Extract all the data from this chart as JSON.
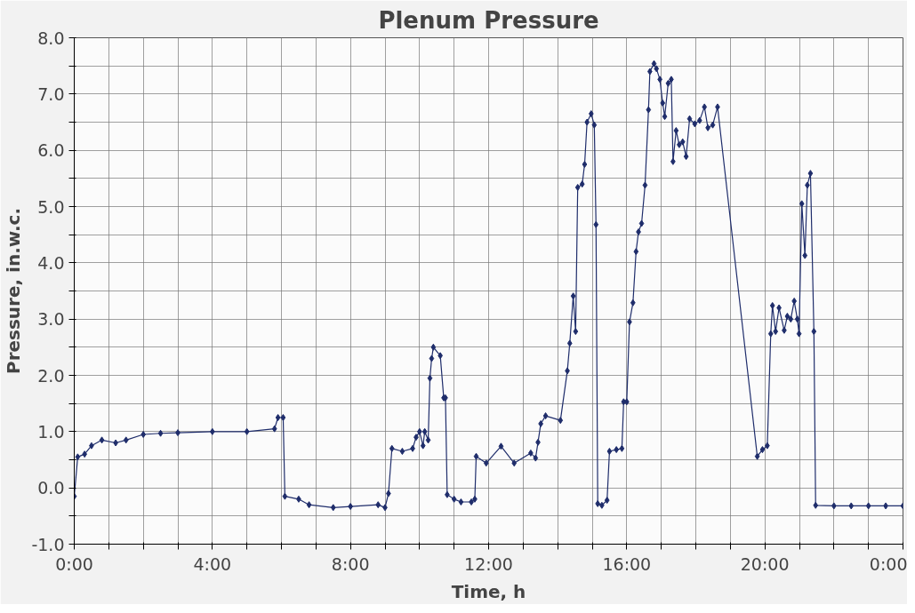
{
  "chart_data": {
    "type": "line",
    "title": "Plenum Pressure",
    "xlabel": "Time, h",
    "ylabel": "Pressure, in.w.c.",
    "xlim": [
      0,
      24
    ],
    "ylim": [
      -1,
      8
    ],
    "xticks": [
      {
        "value": 0,
        "label": "0:00"
      },
      {
        "value": 1,
        "label": null
      },
      {
        "value": 2,
        "label": null
      },
      {
        "value": 3,
        "label": null
      },
      {
        "value": 4,
        "label": "4:00"
      },
      {
        "value": 5,
        "label": null
      },
      {
        "value": 6,
        "label": null
      },
      {
        "value": 7,
        "label": null
      },
      {
        "value": 8,
        "label": "8:00"
      },
      {
        "value": 9,
        "label": null
      },
      {
        "value": 10,
        "label": null
      },
      {
        "value": 11,
        "label": null
      },
      {
        "value": 12,
        "label": "12:00"
      },
      {
        "value": 13,
        "label": null
      },
      {
        "value": 14,
        "label": null
      },
      {
        "value": 15,
        "label": null
      },
      {
        "value": 16,
        "label": "16:00"
      },
      {
        "value": 17,
        "label": null
      },
      {
        "value": 18,
        "label": null
      },
      {
        "value": 19,
        "label": null
      },
      {
        "value": 20,
        "label": "20:00"
      },
      {
        "value": 21,
        "label": null
      },
      {
        "value": 22,
        "label": null
      },
      {
        "value": 23,
        "label": null
      },
      {
        "value": 24,
        "label": "0:00"
      }
    ],
    "yticks": [
      {
        "value": -1,
        "label": "-1.0"
      },
      {
        "value": -0.5,
        "label": null
      },
      {
        "value": 0,
        "label": "0.0"
      },
      {
        "value": 0.5,
        "label": null
      },
      {
        "value": 1,
        "label": "1.0"
      },
      {
        "value": 1.5,
        "label": null
      },
      {
        "value": 2,
        "label": "2.0"
      },
      {
        "value": 2.5,
        "label": null
      },
      {
        "value": 3,
        "label": "3.0"
      },
      {
        "value": 3.5,
        "label": null
      },
      {
        "value": 4,
        "label": "4.0"
      },
      {
        "value": 4.5,
        "label": null
      },
      {
        "value": 5,
        "label": "5.0"
      },
      {
        "value": 5.5,
        "label": null
      },
      {
        "value": 6,
        "label": "6.0"
      },
      {
        "value": 6.5,
        "label": null
      },
      {
        "value": 7,
        "label": "7.0"
      },
      {
        "value": 7.5,
        "label": null
      },
      {
        "value": 8,
        "label": "8.0"
      }
    ],
    "grid": true,
    "marker": "diamond",
    "line_style": "solid",
    "series": [
      {
        "color": "#1f2d6b",
        "x": [
          0.0,
          0.1,
          0.3,
          0.5,
          0.8,
          1.2,
          1.5,
          2.0,
          2.5,
          3.0,
          4.0,
          5.0,
          5.8,
          5.9,
          6.05,
          6.1,
          6.5,
          6.8,
          7.5,
          8.0,
          8.8,
          9.0,
          9.1,
          9.2,
          9.5,
          9.8,
          9.9,
          10.0,
          10.1,
          10.15,
          10.25,
          10.3,
          10.35,
          10.4,
          10.6,
          10.7,
          10.75,
          10.8,
          11.0,
          11.2,
          11.5,
          11.6,
          11.64,
          11.93,
          12.36,
          12.74,
          13.22,
          13.36,
          13.43,
          13.51,
          13.65,
          14.08,
          14.28,
          14.35,
          14.45,
          14.52,
          14.58,
          14.71,
          14.78,
          14.85,
          14.97,
          15.06,
          15.11,
          15.16,
          15.28,
          15.43,
          15.5,
          15.7,
          15.86,
          15.91,
          16.0,
          16.08,
          16.18,
          16.27,
          16.34,
          16.43,
          16.53,
          16.63,
          16.67,
          16.79,
          16.86,
          16.96,
          17.04,
          17.1,
          17.2,
          17.29,
          17.34,
          17.43,
          17.52,
          17.62,
          17.72,
          17.82,
          17.97,
          18.11,
          18.25,
          18.35,
          18.49,
          18.63,
          19.78,
          19.93,
          20.07,
          20.17,
          20.22,
          20.31,
          20.41,
          20.56,
          20.65,
          20.75,
          20.85,
          20.94,
          20.99,
          21.07,
          21.16,
          21.23,
          21.32,
          21.42,
          21.47,
          22.0,
          22.5,
          23.0,
          23.5,
          24.0
        ],
        "values": [
          -0.15,
          0.55,
          0.6,
          0.75,
          0.85,
          0.8,
          0.85,
          0.95,
          0.97,
          0.98,
          1.0,
          1.0,
          1.05,
          1.25,
          1.25,
          -0.15,
          -0.2,
          -0.3,
          -0.35,
          -0.33,
          -0.3,
          -0.35,
          -0.1,
          0.7,
          0.65,
          0.7,
          0.9,
          1.0,
          0.75,
          1.0,
          0.85,
          1.95,
          2.3,
          2.5,
          2.35,
          1.6,
          1.6,
          -0.12,
          -0.2,
          -0.25,
          -0.25,
          -0.2,
          0.56,
          0.44,
          0.74,
          0.44,
          0.62,
          0.53,
          0.81,
          1.14,
          1.28,
          1.2,
          2.08,
          2.57,
          3.41,
          2.78,
          5.34,
          5.4,
          5.75,
          6.5,
          6.65,
          6.45,
          4.68,
          -0.28,
          -0.31,
          -0.22,
          0.65,
          0.68,
          0.7,
          1.53,
          1.53,
          2.95,
          3.29,
          4.2,
          4.55,
          4.7,
          5.38,
          6.72,
          7.4,
          7.54,
          7.45,
          7.26,
          6.84,
          6.6,
          7.19,
          7.26,
          5.8,
          6.35,
          6.1,
          6.15,
          5.89,
          6.56,
          6.47,
          6.53,
          6.77,
          6.4,
          6.45,
          6.77,
          0.56,
          0.68,
          0.75,
          2.74,
          3.24,
          2.78,
          3.2,
          2.8,
          3.05,
          3.0,
          3.32,
          3.0,
          2.74,
          5.05,
          4.13,
          5.38,
          5.59,
          2.78,
          -0.31,
          -0.32,
          -0.32,
          -0.32,
          -0.32,
          -0.32
        ]
      }
    ]
  }
}
